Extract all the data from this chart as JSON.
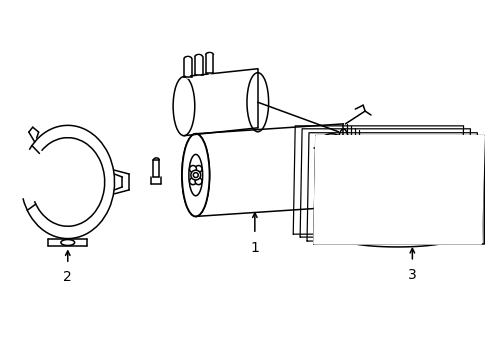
{
  "background_color": "#ffffff",
  "line_color": "#000000",
  "line_width": 1.1,
  "label_fontsize": 10,
  "figsize": [
    4.89,
    3.6
  ],
  "dpi": 100
}
